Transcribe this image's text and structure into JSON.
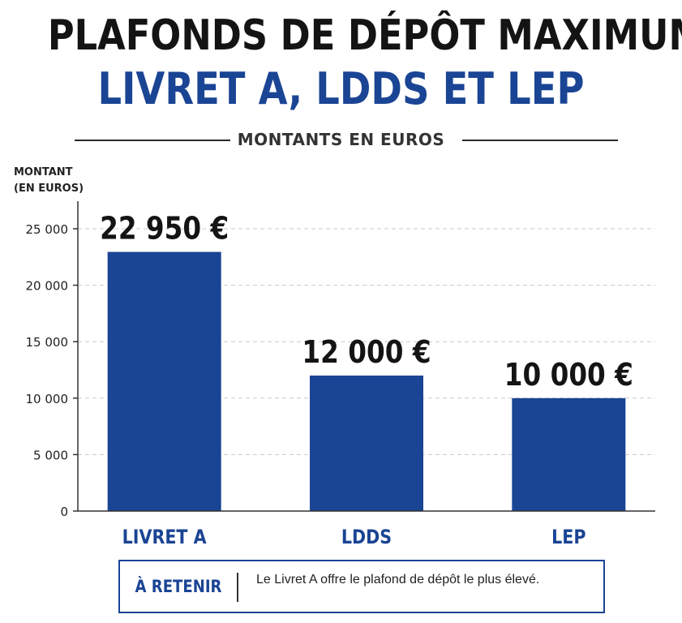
{
  "header": {
    "title_line1": "PLAFONDS DE DÉPÔT MAXIMUM",
    "title_line2": "LIVRET A, LDDS ET LEP",
    "subtitle": "MONTANTS EN EUROS"
  },
  "chart_data": {
    "type": "bar",
    "categories": [
      "LIVRET A",
      "LDDS",
      "LEP"
    ],
    "values": [
      22950,
      12000,
      10000
    ],
    "value_labels": [
      "22 950 €",
      "12 000 €",
      "10 000 €"
    ],
    "ylabel": "MONTANT\n(EN EUROS)",
    "ylim": [
      0,
      25000
    ],
    "yticks": [
      0,
      5000,
      10000,
      15000,
      20000,
      25000
    ],
    "ytick_labels": [
      "0",
      "5 000",
      "10 000",
      "15 000",
      "20 000",
      "25 000"
    ],
    "grid": true,
    "bar_color": "#1a4494"
  },
  "callout": {
    "label": "À RETENIR",
    "text": "Le Livret A offre le plafond de dépôt le plus élevé."
  },
  "colors": {
    "accent": "#1a4494",
    "title_dark": "#141414"
  }
}
